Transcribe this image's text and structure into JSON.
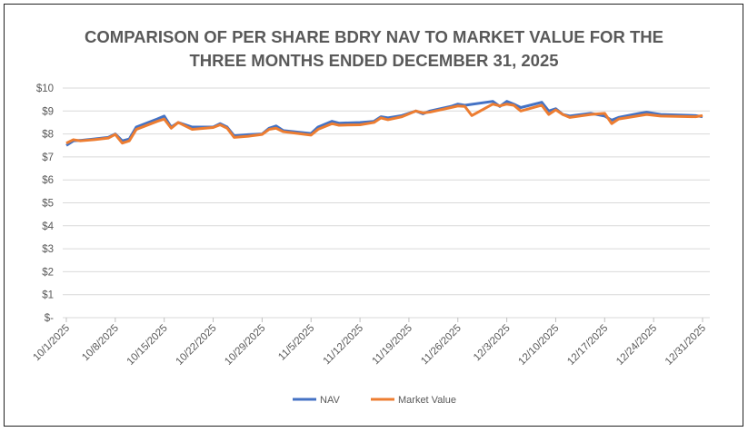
{
  "chart_data": {
    "type": "line",
    "title": [
      "COMPARISON OF PER SHARE BDRY NAV TO MARKET VALUE FOR THE",
      "THREE MONTHS ENDED DECEMBER 31, 2025"
    ],
    "xlabel": "",
    "ylabel": "",
    "x_unit": "days since 10/1/2025",
    "x_tick_labels": [
      "10/1/2025",
      "10/8/2025",
      "10/15/2025",
      "10/22/2025",
      "10/29/2025",
      "11/5/2025",
      "11/12/2025",
      "11/19/2025",
      "11/26/2025",
      "12/3/2025",
      "12/10/2025",
      "12/17/2025",
      "12/24/2025",
      "12/31/2025"
    ],
    "y_tick_labels": [
      "$-",
      "$1",
      "$2",
      "$3",
      "$4",
      "$5",
      "$6",
      "$7",
      "$8",
      "$9",
      "$10"
    ],
    "ylim": [
      0,
      10
    ],
    "xlim": [
      0,
      91
    ],
    "grid": true,
    "legend": "bottom",
    "series": [
      {
        "name": "NAV",
        "color": "#4472C4",
        "x": [
          0,
          1,
          2,
          4,
          6,
          7,
          8,
          9,
          10,
          13,
          14,
          15,
          16,
          18,
          21,
          22,
          23,
          24,
          26,
          28,
          29,
          30,
          31,
          35,
          36,
          38,
          39,
          42,
          44,
          45,
          46,
          48,
          50,
          51,
          52,
          55,
          56,
          57,
          61,
          62,
          63,
          64,
          65,
          68,
          69,
          70,
          71,
          72,
          75,
          77,
          78,
          79,
          82,
          83,
          85,
          90,
          91
        ],
        "y": [
          7.5,
          7.7,
          7.72,
          7.78,
          7.85,
          8.0,
          7.7,
          7.78,
          8.3,
          8.65,
          8.78,
          8.3,
          8.5,
          8.3,
          8.3,
          8.45,
          8.3,
          7.92,
          7.97,
          8.0,
          8.25,
          8.35,
          8.15,
          8.02,
          8.3,
          8.55,
          8.47,
          8.5,
          8.55,
          8.75,
          8.7,
          8.8,
          9.0,
          8.88,
          9.0,
          9.2,
          9.3,
          9.25,
          9.42,
          9.2,
          9.42,
          9.3,
          9.15,
          9.38,
          9.0,
          9.1,
          8.85,
          8.78,
          8.9,
          8.78,
          8.6,
          8.72,
          8.9,
          8.95,
          8.85,
          8.8,
          8.75
        ]
      },
      {
        "name": "Market Value",
        "color": "#ED7D31",
        "x": [
          0,
          1,
          2,
          4,
          6,
          7,
          8,
          9,
          10,
          13,
          14,
          15,
          16,
          18,
          21,
          22,
          23,
          24,
          26,
          28,
          29,
          30,
          31,
          35,
          36,
          38,
          39,
          42,
          44,
          45,
          46,
          48,
          50,
          51,
          52,
          55,
          56,
          57,
          58,
          61,
          62,
          63,
          64,
          65,
          68,
          69,
          70,
          71,
          72,
          75,
          77,
          78,
          79,
          82,
          83,
          85,
          90,
          91
        ],
        "y": [
          7.6,
          7.75,
          7.7,
          7.75,
          7.82,
          7.98,
          7.6,
          7.7,
          8.2,
          8.55,
          8.65,
          8.25,
          8.5,
          8.2,
          8.28,
          8.4,
          8.25,
          7.85,
          7.9,
          7.98,
          8.2,
          8.25,
          8.1,
          7.95,
          8.2,
          8.45,
          8.38,
          8.4,
          8.5,
          8.7,
          8.62,
          8.75,
          9.0,
          8.92,
          8.95,
          9.15,
          9.22,
          9.2,
          8.8,
          9.3,
          9.22,
          9.3,
          9.25,
          9.0,
          9.25,
          8.85,
          9.05,
          8.85,
          8.72,
          8.85,
          8.9,
          8.45,
          8.65,
          8.8,
          8.85,
          8.78,
          8.75,
          8.8
        ]
      }
    ]
  }
}
